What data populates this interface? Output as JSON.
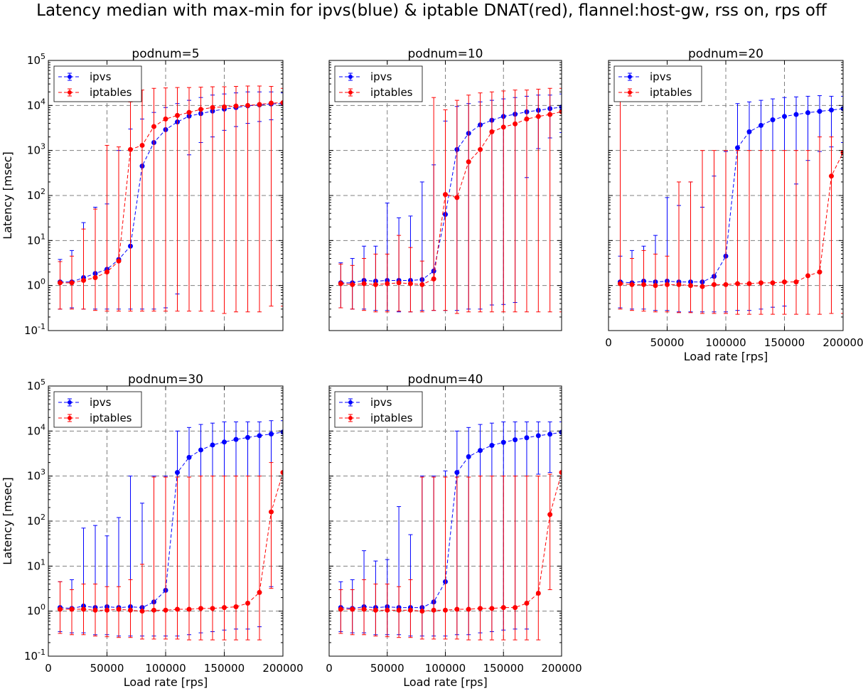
{
  "figure": {
    "title": "Latency median with max-min for ipvs(blue) & iptable DNAT(red),  flannel:host-gw, rss on, rps off"
  },
  "colors": {
    "ipvs": "#0000ff",
    "iptables": "#ff0000",
    "grid": "#808080"
  },
  "chart_data": [
    {
      "type": "line",
      "title": "podnum=5",
      "xlabel": "",
      "ylabel": "Latency [msec]",
      "yscale": "log",
      "xlim": [
        0,
        200000
      ],
      "ylim": [
        0.1,
        100000
      ],
      "xticks": [
        "0",
        "50000",
        "100000",
        "150000",
        "200000"
      ],
      "yticks": [
        "10^-1",
        "10^0",
        "10^1",
        "10^2",
        "10^3",
        "10^4",
        "10^5"
      ],
      "show_xticklabels": false,
      "show_yticklabels": true,
      "grid": true,
      "legend": "top-left",
      "x": [
        10000,
        20000,
        30000,
        40000,
        50000,
        60000,
        70000,
        80000,
        90000,
        100000,
        110000,
        120000,
        130000,
        140000,
        150000,
        160000,
        170000,
        180000,
        190000,
        200000
      ],
      "series": [
        {
          "name": "ipvs",
          "median": [
            1.2,
            1.2,
            1.5,
            1.85,
            2.3,
            3.8,
            7.5,
            450,
            1500,
            2900,
            4300,
            5800,
            6600,
            7500,
            8300,
            9000,
            9800,
            10300,
            10800,
            11000
          ],
          "max": [
            3.8,
            6.0,
            25,
            55,
            65,
            1000,
            3000,
            5000,
            7000,
            9000,
            11000,
            13000,
            15000,
            17000,
            18000,
            19000,
            20000,
            20000,
            20000,
            19000
          ],
          "min": [
            0.3,
            0.32,
            0.3,
            0.3,
            0.3,
            0.3,
            0.3,
            0.3,
            0.3,
            0.32,
            0.65,
            800,
            1500,
            2000,
            2800,
            3400,
            4000,
            4400,
            4800,
            5000
          ]
        },
        {
          "name": "iptables",
          "median": [
            1.15,
            1.15,
            1.3,
            1.5,
            2.0,
            3.5,
            1050,
            1300,
            3400,
            5000,
            6000,
            7000,
            8200,
            9000,
            9300,
            9700,
            10000,
            10500,
            11300,
            11500
          ],
          "max": [
            3.4,
            4.5,
            18,
            50,
            1300,
            1200,
            12000,
            22000,
            24000,
            24500,
            25000,
            25000,
            25500,
            26000,
            26000,
            26500,
            27000,
            27000,
            26500,
            24000
          ],
          "min": [
            0.3,
            0.3,
            0.3,
            0.28,
            0.27,
            0.27,
            0.27,
            0.27,
            0.27,
            0.27,
            0.27,
            0.27,
            0.27,
            0.27,
            0.24,
            0.26,
            0.26,
            0.26,
            0.35,
            0.35
          ]
        }
      ]
    },
    {
      "type": "line",
      "title": "podnum=10",
      "xlabel": "",
      "ylabel": "",
      "yscale": "log",
      "xlim": [
        0,
        200000
      ],
      "ylim": [
        0.1,
        100000
      ],
      "xticks": [
        "0",
        "50000",
        "100000",
        "150000",
        "200000"
      ],
      "show_xticklabels": false,
      "show_yticklabels": false,
      "grid": true,
      "legend": "top-left",
      "x": [
        10000,
        20000,
        30000,
        40000,
        50000,
        60000,
        70000,
        80000,
        90000,
        100000,
        110000,
        120000,
        130000,
        140000,
        150000,
        160000,
        170000,
        180000,
        190000,
        200000
      ],
      "series": [
        {
          "name": "ipvs",
          "median": [
            1.15,
            1.15,
            1.3,
            1.25,
            1.3,
            1.3,
            1.3,
            1.35,
            2.1,
            38,
            1050,
            2400,
            3700,
            4700,
            5700,
            6400,
            7200,
            7800,
            8500,
            9200
          ],
          "max": [
            3.2,
            4.0,
            7.5,
            7.5,
            68,
            32,
            35,
            200,
            480,
            4500,
            9500,
            11000,
            12000,
            13000,
            14000,
            15000,
            16000,
            17000,
            17000,
            18000
          ],
          "min": [
            0.32,
            0.3,
            0.3,
            0.28,
            0.28,
            0.26,
            0.26,
            0.28,
            0.28,
            0.28,
            0.28,
            0.3,
            0.3,
            0.37,
            0.38,
            0.42,
            250,
            1100,
            1900,
            2500
          ]
        },
        {
          "name": "iptables",
          "median": [
            1.1,
            1.05,
            1.1,
            1.05,
            1.1,
            1.15,
            1.1,
            1.05,
            1.4,
            105,
            90,
            560,
            1050,
            2600,
            3300,
            3900,
            5000,
            5700,
            6300,
            7300
          ],
          "max": [
            3.0,
            2.8,
            4.0,
            5.0,
            5.0,
            13,
            7.0,
            3.5,
            15000,
            8000,
            13000,
            17000,
            19000,
            20000,
            21000,
            22000,
            22000,
            23000,
            24000,
            24000
          ],
          "min": [
            0.32,
            0.3,
            0.28,
            0.26,
            0.26,
            0.27,
            0.26,
            0.26,
            0.28,
            0.28,
            0.24,
            0.26,
            0.26,
            0.26,
            0.26,
            0.26,
            0.26,
            0.26,
            0.26,
            0.26
          ]
        }
      ]
    },
    {
      "type": "line",
      "title": "podnum=20",
      "xlabel": "Load rate [rps]",
      "ylabel": "",
      "yscale": "log",
      "xlim": [
        0,
        200000
      ],
      "ylim": [
        0.1,
        100000
      ],
      "xticks": [
        "0",
        "50000",
        "100000",
        "150000",
        "200000"
      ],
      "show_xticklabels": true,
      "show_yticklabels": false,
      "grid": true,
      "legend": "top-left",
      "x": [
        10000,
        20000,
        30000,
        40000,
        50000,
        60000,
        70000,
        80000,
        90000,
        100000,
        110000,
        120000,
        130000,
        140000,
        150000,
        160000,
        170000,
        180000,
        190000,
        200000
      ],
      "series": [
        {
          "name": "ipvs",
          "median": [
            1.2,
            1.15,
            1.25,
            1.2,
            1.25,
            1.2,
            1.2,
            1.2,
            1.6,
            4.5,
            1150,
            2600,
            3600,
            4800,
            5700,
            6300,
            6900,
            7400,
            7900,
            8500
          ],
          "max": [
            4.5,
            6.0,
            7.5,
            13,
            90,
            60,
            200,
            55,
            270,
            950,
            11000,
            12000,
            13000,
            14000,
            15000,
            15500,
            16000,
            16500,
            16000,
            16000
          ],
          "min": [
            0.32,
            0.3,
            0.3,
            0.28,
            0.28,
            0.26,
            0.26,
            0.26,
            0.26,
            0.26,
            0.28,
            0.28,
            0.3,
            0.33,
            0.35,
            180,
            600,
            950,
            1200,
            1500
          ]
        },
        {
          "name": "iptables",
          "median": [
            1.1,
            1.05,
            1.05,
            1.0,
            1.05,
            1.05,
            1.0,
            0.95,
            1.05,
            1.05,
            1.1,
            1.1,
            1.15,
            1.15,
            1.2,
            1.2,
            1.65,
            2.0,
            270,
            900
          ],
          "max": [
            14000,
            4.0,
            6.0,
            5.0,
            4.5,
            200,
            200,
            1000,
            1000,
            1000,
            1000,
            1000,
            1000,
            1000,
            1000,
            1000,
            1000,
            2000,
            2000,
            1000
          ],
          "min": [
            0.3,
            0.28,
            0.27,
            0.26,
            0.26,
            0.25,
            0.25,
            0.24,
            0.24,
            0.24,
            0.23,
            0.23,
            0.23,
            0.23,
            0.23,
            0.23,
            0.23,
            0.23,
            0.24,
            0.24
          ]
        }
      ]
    },
    {
      "type": "line",
      "title": "podnum=30",
      "xlabel": "Load rate [rps]",
      "ylabel": "Latency [msec]",
      "yscale": "log",
      "xlim": [
        0,
        200000
      ],
      "ylim": [
        0.1,
        100000
      ],
      "xticks": [
        "0",
        "50000",
        "100000",
        "150000",
        "200000"
      ],
      "yticks": [
        "10^-1",
        "10^0",
        "10^1",
        "10^2",
        "10^3",
        "10^4",
        "10^5"
      ],
      "show_xticklabels": true,
      "show_yticklabels": true,
      "grid": true,
      "legend": "top-left",
      "x": [
        10000,
        20000,
        30000,
        40000,
        50000,
        60000,
        70000,
        80000,
        90000,
        100000,
        110000,
        120000,
        130000,
        140000,
        150000,
        160000,
        170000,
        180000,
        190000,
        200000
      ],
      "series": [
        {
          "name": "ipvs",
          "median": [
            1.2,
            1.15,
            1.3,
            1.2,
            1.25,
            1.2,
            1.25,
            1.2,
            1.6,
            2.9,
            1200,
            2600,
            3800,
            4900,
            5700,
            6500,
            7200,
            7900,
            8600,
            9500
          ],
          "max": [
            4.5,
            5.0,
            70,
            80,
            47,
            120,
            1000,
            250,
            1000,
            1000,
            10000,
            12000,
            14000,
            15000,
            16000,
            16000,
            16000,
            16000,
            17000,
            17000
          ],
          "min": [
            0.35,
            0.33,
            0.33,
            0.3,
            0.3,
            0.28,
            0.28,
            0.28,
            0.28,
            0.28,
            0.28,
            0.3,
            0.33,
            0.35,
            0.38,
            0.4,
            0.4,
            0.45,
            3.5,
            1200
          ]
        },
        {
          "name": "iptables",
          "median": [
            1.1,
            1.1,
            1.1,
            1.05,
            1.05,
            1.1,
            1.05,
            1.0,
            1.05,
            1.05,
            1.1,
            1.1,
            1.15,
            1.15,
            1.2,
            1.25,
            1.5,
            2.6,
            160,
            1200
          ],
          "max": [
            4.5,
            3.0,
            4.0,
            4.0,
            3.5,
            3.5,
            5.0,
            11,
            950,
            950,
            950,
            950,
            1000,
            1000,
            1000,
            1000,
            1000,
            1000,
            2000,
            1200
          ],
          "min": [
            0.32,
            0.3,
            0.3,
            0.28,
            0.27,
            0.26,
            0.26,
            0.24,
            0.24,
            0.24,
            0.24,
            0.23,
            0.23,
            0.23,
            0.23,
            0.23,
            0.23,
            0.23,
            3.2,
            1200
          ]
        }
      ]
    },
    {
      "type": "line",
      "title": "podnum=40",
      "xlabel": "Load rate [rps]",
      "ylabel": "",
      "yscale": "log",
      "xlim": [
        0,
        200000
      ],
      "ylim": [
        0.1,
        100000
      ],
      "xticks": [
        "0",
        "50000",
        "100000",
        "150000",
        "200000"
      ],
      "show_xticklabels": true,
      "show_yticklabels": false,
      "grid": true,
      "legend": "top-left",
      "x": [
        10000,
        20000,
        30000,
        40000,
        50000,
        60000,
        70000,
        80000,
        90000,
        100000,
        110000,
        120000,
        130000,
        140000,
        150000,
        160000,
        170000,
        180000,
        190000,
        200000
      ],
      "series": [
        {
          "name": "ipvs",
          "median": [
            1.2,
            1.15,
            1.25,
            1.2,
            1.25,
            1.2,
            1.2,
            1.2,
            1.6,
            4.5,
            1200,
            2700,
            3700,
            4800,
            5600,
            6400,
            7100,
            7900,
            8500,
            9400
          ],
          "max": [
            4.5,
            5.0,
            22,
            13,
            14,
            210,
            50,
            1000,
            1000,
            1300,
            10000,
            12000,
            14000,
            15000,
            16000,
            16000,
            16000,
            16000,
            16000,
            16000
          ],
          "min": [
            0.35,
            0.33,
            0.33,
            0.3,
            0.3,
            0.3,
            0.28,
            0.28,
            0.28,
            0.28,
            0.3,
            0.3,
            0.33,
            0.35,
            0.38,
            0.4,
            0.4,
            1100,
            1200,
            1200
          ]
        },
        {
          "name": "iptables",
          "median": [
            1.1,
            1.1,
            1.1,
            1.05,
            1.05,
            1.05,
            1.05,
            1.0,
            1.05,
            1.05,
            1.1,
            1.1,
            1.15,
            1.15,
            1.2,
            1.2,
            1.5,
            2.5,
            140,
            1200
          ],
          "max": [
            3.0,
            3.0,
            5.0,
            4.0,
            4.0,
            3.5,
            5.0,
            950,
            950,
            950,
            950,
            950,
            1000,
            1000,
            1000,
            1000,
            1000,
            1000,
            1100,
            1200
          ],
          "min": [
            0.32,
            0.3,
            0.3,
            0.28,
            0.27,
            0.26,
            0.26,
            0.24,
            0.24,
            0.24,
            0.24,
            0.23,
            0.23,
            0.23,
            0.23,
            0.23,
            0.23,
            0.23,
            3.0,
            1200
          ]
        }
      ]
    }
  ]
}
